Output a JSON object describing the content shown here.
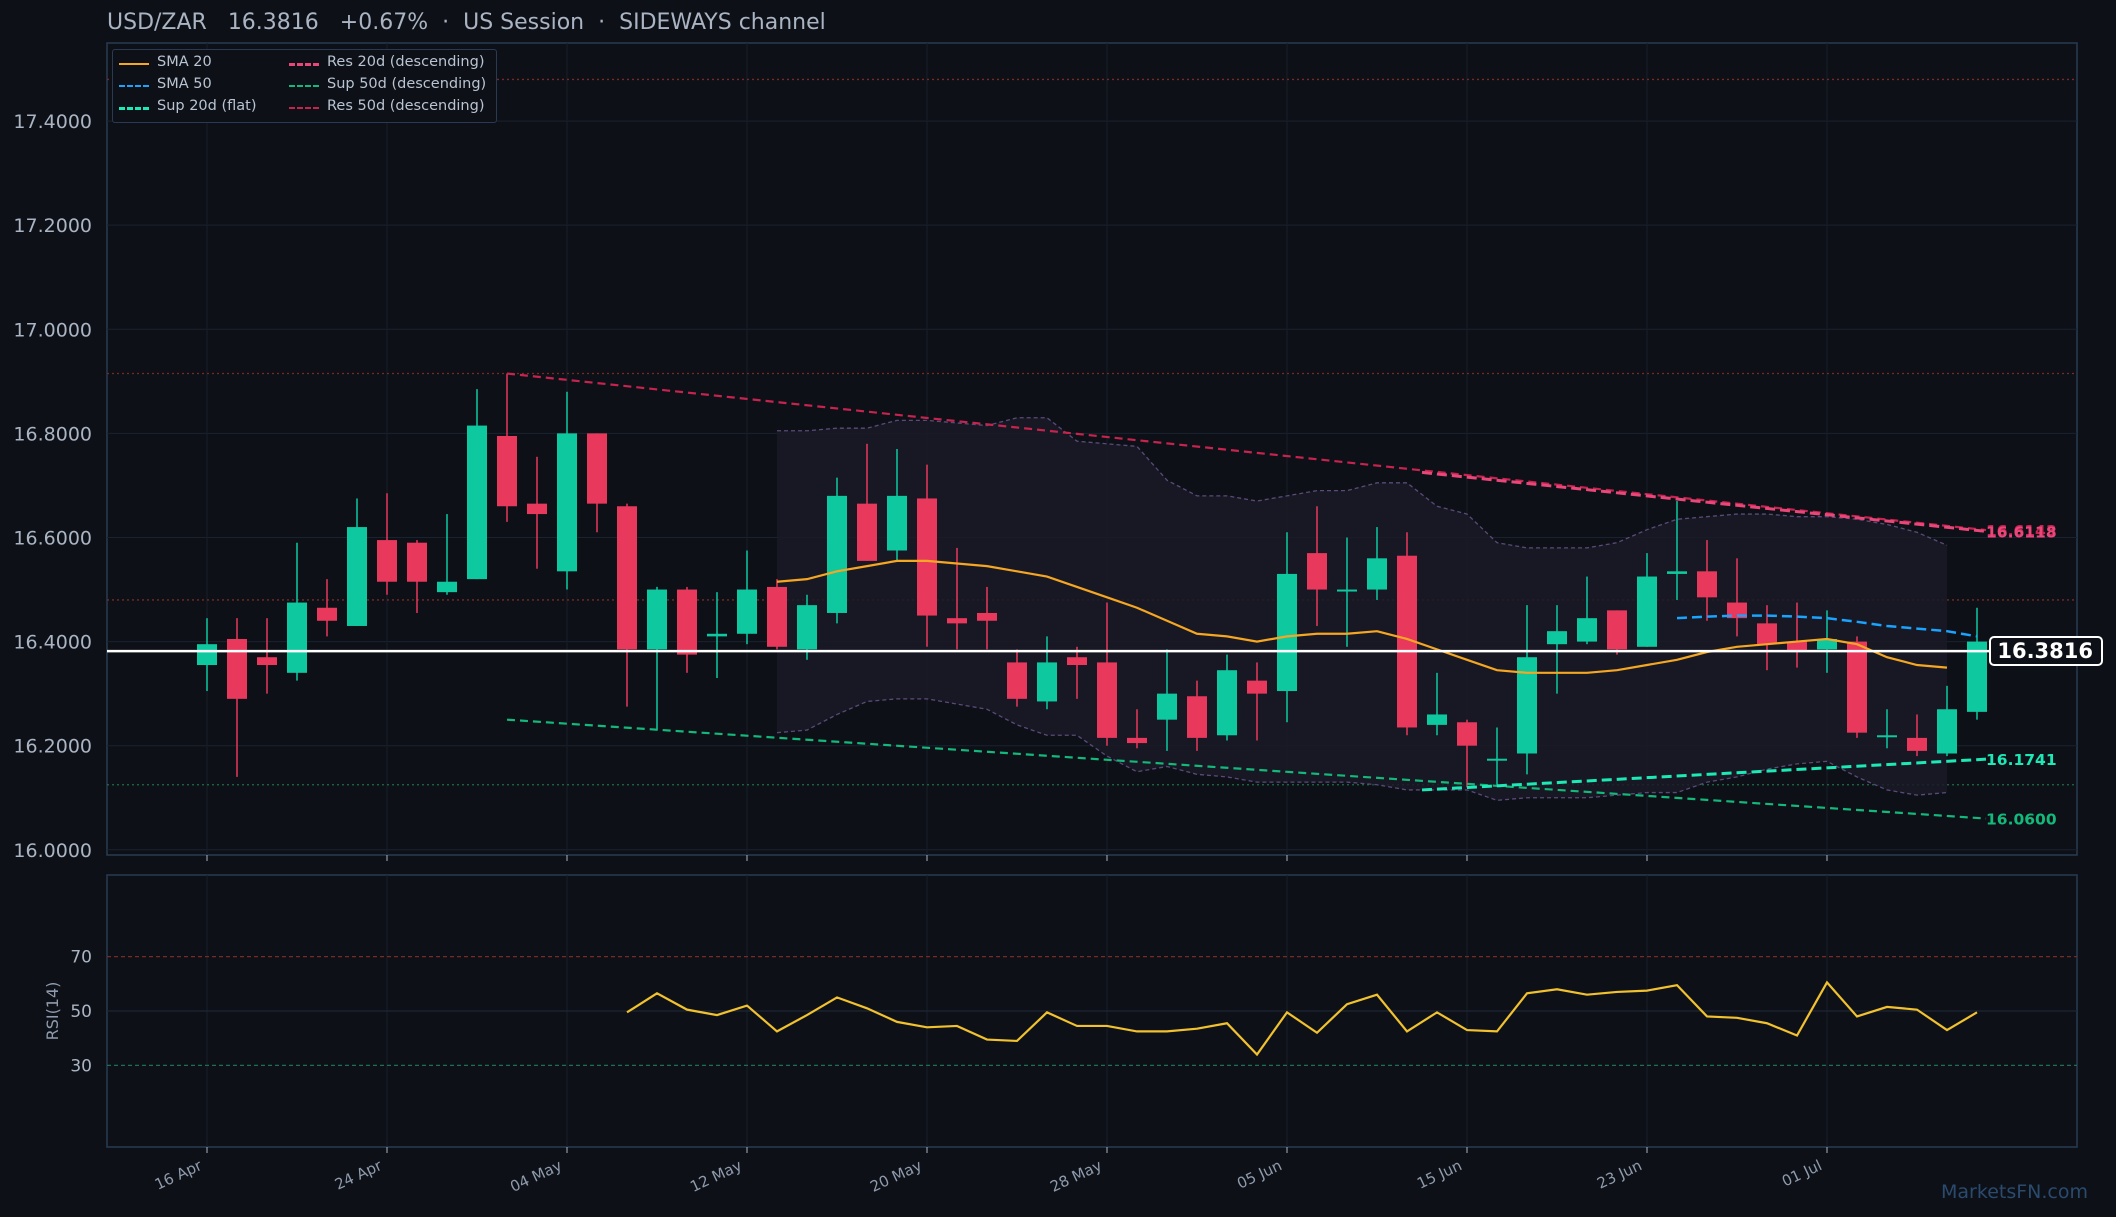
{
  "header": {
    "symbol": "USD/ZAR",
    "price": "16.3816",
    "change": "+0.67%",
    "session": "US Session",
    "channel": "SIDEWAYS channel",
    "separator": "·"
  },
  "watermark": "MarketsFN.com",
  "colors": {
    "background": "#0d1117",
    "bull": "#0ec9a0",
    "bear": "#e8385b",
    "sma20": "#f5a623",
    "sma50": "#1aa3ff",
    "support": "#1de9b6",
    "support50": "#14b87a",
    "resistance20": "#e8477a",
    "resistance50": "#c7234f",
    "rsi": "#f2c12e",
    "price_line": "#ffffff"
  },
  "legend": [
    {
      "label": "SMA 20",
      "color": "#f5a623",
      "style": "solid"
    },
    {
      "label": "SMA 50",
      "color": "#1aa3ff",
      "style": "dashed"
    },
    {
      "label": "Sup 20d (flat)",
      "color": "#1de9b6",
      "style": "dashed"
    },
    {
      "label": "Res 20d (descending)",
      "color": "#e8477a",
      "style": "dashed"
    },
    {
      "label": "Sup 50d (descending)",
      "color": "#14b87a",
      "style": "dashed"
    },
    {
      "label": "Res 50d (descending)",
      "color": "#c7234f",
      "style": "dashed"
    }
  ],
  "price_label": "16.3816",
  "line_labels": {
    "res20": "16.6118",
    "res50": "16.6143",
    "sup20": "16.1741",
    "sup50": "16.0600"
  },
  "chart_data": {
    "type": "candlestick",
    "price_axis": {
      "ylim": [
        15.99,
        17.55
      ],
      "ticks": [
        16.0,
        16.2,
        16.4,
        16.6,
        16.8,
        17.0,
        17.2,
        17.4
      ],
      "tick_labels": [
        "16.0000",
        "16.2000",
        "16.4000",
        "16.6000",
        "16.8000",
        "17.0000",
        "17.2000",
        "17.4000"
      ]
    },
    "date_ticks": [
      "16 Apr",
      "24 Apr",
      "04 May",
      "12 May",
      "20 May",
      "28 May",
      "05 Jun",
      "15 Jun",
      "23 Jun",
      "01 Jul"
    ],
    "date_tick_index": [
      0,
      6,
      12,
      18,
      24,
      30,
      36,
      42,
      48,
      54
    ],
    "candles": [
      {
        "o": 16.355,
        "h": 16.445,
        "l": 16.305,
        "c": 16.395
      },
      {
        "o": 16.405,
        "h": 16.445,
        "l": 16.14,
        "c": 16.29
      },
      {
        "o": 16.37,
        "h": 16.445,
        "l": 16.3,
        "c": 16.355
      },
      {
        "o": 16.34,
        "h": 16.59,
        "l": 16.325,
        "c": 16.475
      },
      {
        "o": 16.465,
        "h": 16.52,
        "l": 16.41,
        "c": 16.44
      },
      {
        "o": 16.43,
        "h": 16.675,
        "l": 16.43,
        "c": 16.62
      },
      {
        "o": 16.595,
        "h": 16.685,
        "l": 16.49,
        "c": 16.515
      },
      {
        "o": 16.59,
        "h": 16.595,
        "l": 16.455,
        "c": 16.515
      },
      {
        "o": 16.495,
        "h": 16.645,
        "l": 16.49,
        "c": 16.515
      },
      {
        "o": 16.52,
        "h": 16.885,
        "l": 16.52,
        "c": 16.815
      },
      {
        "o": 16.795,
        "h": 16.915,
        "l": 16.63,
        "c": 16.66
      },
      {
        "o": 16.665,
        "h": 16.755,
        "l": 16.54,
        "c": 16.645
      },
      {
        "o": 16.535,
        "h": 16.88,
        "l": 16.5,
        "c": 16.8
      },
      {
        "o": 16.8,
        "h": 16.8,
        "l": 16.61,
        "c": 16.665
      },
      {
        "o": 16.66,
        "h": 16.665,
        "l": 16.275,
        "c": 16.385
      },
      {
        "o": 16.385,
        "h": 16.505,
        "l": 16.23,
        "c": 16.5
      },
      {
        "o": 16.5,
        "h": 16.505,
        "l": 16.34,
        "c": 16.375
      },
      {
        "o": 16.41,
        "h": 16.495,
        "l": 16.33,
        "c": 16.415
      },
      {
        "o": 16.415,
        "h": 16.575,
        "l": 16.395,
        "c": 16.5
      },
      {
        "o": 16.505,
        "h": 16.52,
        "l": 16.385,
        "c": 16.39
      },
      {
        "o": 16.385,
        "h": 16.49,
        "l": 16.365,
        "c": 16.47
      },
      {
        "o": 16.455,
        "h": 16.715,
        "l": 16.435,
        "c": 16.68
      },
      {
        "o": 16.665,
        "h": 16.78,
        "l": 16.555,
        "c": 16.555
      },
      {
        "o": 16.575,
        "h": 16.77,
        "l": 16.555,
        "c": 16.68
      },
      {
        "o": 16.675,
        "h": 16.74,
        "l": 16.39,
        "c": 16.45
      },
      {
        "o": 16.445,
        "h": 16.58,
        "l": 16.385,
        "c": 16.435
      },
      {
        "o": 16.455,
        "h": 16.505,
        "l": 16.385,
        "c": 16.44
      },
      {
        "o": 16.36,
        "h": 16.385,
        "l": 16.275,
        "c": 16.29
      },
      {
        "o": 16.285,
        "h": 16.41,
        "l": 16.27,
        "c": 16.36
      },
      {
        "o": 16.37,
        "h": 16.39,
        "l": 16.29,
        "c": 16.355
      },
      {
        "o": 16.36,
        "h": 16.475,
        "l": 16.2,
        "c": 16.215
      },
      {
        "o": 16.215,
        "h": 16.27,
        "l": 16.195,
        "c": 16.205
      },
      {
        "o": 16.25,
        "h": 16.385,
        "l": 16.19,
        "c": 16.3
      },
      {
        "o": 16.295,
        "h": 16.325,
        "l": 16.19,
        "c": 16.215
      },
      {
        "o": 16.22,
        "h": 16.375,
        "l": 16.21,
        "c": 16.345
      },
      {
        "o": 16.325,
        "h": 16.36,
        "l": 16.21,
        "c": 16.3
      },
      {
        "o": 16.305,
        "h": 16.61,
        "l": 16.245,
        "c": 16.53
      },
      {
        "o": 16.57,
        "h": 16.66,
        "l": 16.43,
        "c": 16.5
      },
      {
        "o": 16.5,
        "h": 16.6,
        "l": 16.39,
        "c": 16.5
      },
      {
        "o": 16.5,
        "h": 16.62,
        "l": 16.48,
        "c": 16.56
      },
      {
        "o": 16.565,
        "h": 16.61,
        "l": 16.22,
        "c": 16.235
      },
      {
        "o": 16.24,
        "h": 16.34,
        "l": 16.22,
        "c": 16.26
      },
      {
        "o": 16.245,
        "h": 16.25,
        "l": 16.12,
        "c": 16.2
      },
      {
        "o": 16.175,
        "h": 16.235,
        "l": 16.125,
        "c": 16.175
      },
      {
        "o": 16.185,
        "h": 16.47,
        "l": 16.145,
        "c": 16.37
      },
      {
        "o": 16.395,
        "h": 16.47,
        "l": 16.3,
        "c": 16.42
      },
      {
        "o": 16.4,
        "h": 16.525,
        "l": 16.395,
        "c": 16.445
      },
      {
        "o": 16.46,
        "h": 16.46,
        "l": 16.375,
        "c": 16.385
      },
      {
        "o": 16.39,
        "h": 16.57,
        "l": 16.39,
        "c": 16.525
      },
      {
        "o": 16.53,
        "h": 16.67,
        "l": 16.48,
        "c": 16.535
      },
      {
        "o": 16.535,
        "h": 16.595,
        "l": 16.44,
        "c": 16.485
      },
      {
        "o": 16.475,
        "h": 16.56,
        "l": 16.41,
        "c": 16.445
      },
      {
        "o": 16.435,
        "h": 16.47,
        "l": 16.345,
        "c": 16.395
      },
      {
        "o": 16.4,
        "h": 16.475,
        "l": 16.35,
        "c": 16.38
      },
      {
        "o": 16.385,
        "h": 16.46,
        "l": 16.34,
        "c": 16.405
      },
      {
        "o": 16.4,
        "h": 16.41,
        "l": 16.215,
        "c": 16.225
      },
      {
        "o": 16.22,
        "h": 16.27,
        "l": 16.195,
        "c": 16.22
      },
      {
        "o": 16.215,
        "h": 16.26,
        "l": 16.18,
        "c": 16.19
      },
      {
        "o": 16.185,
        "h": 16.315,
        "l": 16.18,
        "c": 16.27
      },
      {
        "o": 16.265,
        "h": 16.465,
        "l": 16.25,
        "c": 16.4
      }
    ],
    "sma20": {
      "start": 19,
      "values": [
        16.515,
        16.52,
        16.535,
        16.545,
        16.555,
        16.555,
        16.55,
        16.545,
        16.535,
        16.525,
        16.505,
        16.485,
        16.465,
        16.44,
        16.415,
        16.41,
        16.4,
        16.41,
        16.415,
        16.415,
        16.42,
        16.405,
        16.385,
        16.365,
        16.345,
        16.34,
        16.34,
        16.34,
        16.345,
        16.355,
        16.365,
        16.38,
        16.39,
        16.395,
        16.4,
        16.405,
        16.395,
        16.37,
        16.355,
        16.35
      ]
    },
    "sma50": {
      "start": 49,
      "values": [
        16.445,
        16.448,
        16.45,
        16.45,
        16.448,
        16.445,
        16.438,
        16.43,
        16.425,
        16.42,
        16.41
      ]
    },
    "bands": {
      "start": 19,
      "upper": [
        16.805,
        16.805,
        16.81,
        16.81,
        16.825,
        16.825,
        16.82,
        16.815,
        16.83,
        16.83,
        16.785,
        16.78,
        16.775,
        16.71,
        16.68,
        16.68,
        16.67,
        16.68,
        16.69,
        16.69,
        16.705,
        16.705,
        16.66,
        16.645,
        16.59,
        16.58,
        16.58,
        16.58,
        16.59,
        16.615,
        16.635,
        16.64,
        16.645,
        16.645,
        16.64,
        16.64,
        16.635,
        16.625,
        16.61,
        16.585
      ],
      "lower": [
        16.225,
        16.23,
        16.26,
        16.285,
        16.29,
        16.29,
        16.28,
        16.27,
        16.24,
        16.22,
        16.22,
        16.18,
        16.15,
        16.16,
        16.145,
        16.14,
        16.13,
        16.13,
        16.13,
        16.13,
        16.125,
        16.115,
        16.115,
        16.115,
        16.095,
        16.1,
        16.1,
        16.1,
        16.105,
        16.11,
        16.11,
        16.13,
        16.14,
        16.155,
        16.165,
        16.17,
        16.14,
        16.115,
        16.105,
        16.11
      ]
    },
    "sup20": {
      "from": [
        40.5,
        16.115
      ],
      "to": [
        59.3,
        16.1741
      ]
    },
    "res20": {
      "from": [
        40.5,
        16.725
      ],
      "to": [
        59.3,
        16.6118
      ]
    },
    "sup50": {
      "from": [
        10.0,
        16.25
      ],
      "to": [
        59.3,
        16.06
      ]
    },
    "res50": {
      "from": [
        10.0,
        16.915
      ],
      "to": [
        59.3,
        16.6143
      ]
    },
    "hlines": [
      16.125,
      16.48,
      16.915,
      17.48
    ],
    "current_price": 16.3816,
    "rsi": {
      "label": "RSI(14)",
      "ylim": [
        0,
        100
      ],
      "ticks": [
        30,
        50,
        70
      ],
      "start": 14,
      "values": [
        49.5,
        56.5,
        50.5,
        48.5,
        52.0,
        42.5,
        48.5,
        55.0,
        51.0,
        46.0,
        44.0,
        44.5,
        39.5,
        39.0,
        49.5,
        44.5,
        44.5,
        42.5,
        42.5,
        43.5,
        45.5,
        34.0,
        49.5,
        42.0,
        52.5,
        56.0,
        42.5,
        49.5,
        43.0,
        42.5,
        56.5,
        58.0,
        56.0,
        57.0,
        57.5,
        59.5,
        48.0,
        47.5,
        45.5,
        41.0,
        60.5,
        48.0,
        51.5,
        50.5,
        43.0,
        49.5
      ]
    }
  }
}
